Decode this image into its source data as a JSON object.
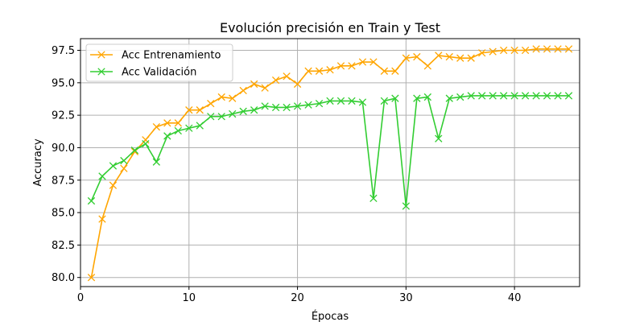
{
  "chart_data": {
    "type": "line",
    "title": "Evolución precisión en Train y Test",
    "xlabel": "Épocas",
    "ylabel": "Accuracy",
    "xlim": [
      0.0,
      46.0
    ],
    "ylim": [
      79.3,
      98.4
    ],
    "xticks": [
      0,
      10,
      20,
      30,
      40
    ],
    "yticks": [
      80.0,
      82.5,
      85.0,
      87.5,
      90.0,
      92.5,
      95.0,
      97.5
    ],
    "ytick_labels": [
      "80.0",
      "82.5",
      "85.0",
      "87.5",
      "90.0",
      "92.5",
      "95.0",
      "97.5"
    ],
    "grid": true,
    "legend_position": "upper-left",
    "x": [
      1,
      2,
      3,
      4,
      5,
      6,
      7,
      8,
      9,
      10,
      11,
      12,
      13,
      14,
      15,
      16,
      17,
      18,
      19,
      20,
      21,
      22,
      23,
      24,
      25,
      26,
      27,
      28,
      29,
      30,
      31,
      32,
      33,
      34,
      35,
      36,
      37,
      38,
      39,
      40,
      41,
      42,
      43,
      44,
      45
    ],
    "series": [
      {
        "name": "Acc Entrenamiento",
        "color": "#FFA500",
        "marker": "x",
        "values": [
          80.0,
          84.5,
          87.1,
          88.4,
          89.7,
          90.6,
          91.6,
          91.9,
          91.9,
          92.9,
          92.9,
          93.4,
          93.9,
          93.8,
          94.4,
          94.9,
          94.6,
          95.2,
          95.5,
          94.9,
          95.9,
          95.9,
          96.0,
          96.3,
          96.3,
          96.6,
          96.6,
          95.9,
          95.9,
          96.9,
          97.0,
          96.3,
          97.1,
          97.0,
          96.9,
          96.9,
          97.3,
          97.4,
          97.5,
          97.5,
          97.5,
          97.6,
          97.6,
          97.6,
          97.6
        ]
      },
      {
        "name": "Acc Validación",
        "color": "#32CD32",
        "marker": "x",
        "values": [
          85.9,
          87.8,
          88.6,
          89.0,
          89.8,
          90.3,
          88.9,
          90.9,
          91.3,
          91.5,
          91.7,
          92.4,
          92.4,
          92.6,
          92.8,
          92.9,
          93.2,
          93.1,
          93.1,
          93.2,
          93.3,
          93.4,
          93.6,
          93.6,
          93.6,
          93.5,
          86.1,
          93.6,
          93.8,
          85.5,
          93.8,
          93.9,
          90.7,
          93.8,
          93.9,
          94.0,
          94.0,
          94.0,
          94.0,
          94.0,
          94.0,
          94.0,
          94.0,
          94.0,
          94.0
        ]
      }
    ]
  }
}
